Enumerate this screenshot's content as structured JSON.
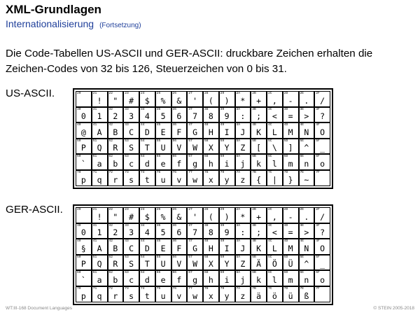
{
  "title": "XML-Grundlagen",
  "subtitle": "Internationalisierung",
  "subtitle_note": "(Fortsetzung)",
  "intro": "Die Code-Tabellen US-ASCII und GER-ASCII: druckbare Zeichen erhalten die Zeichen-Codes von 32 bis 126, Steuerzeichen von 0 bis 31.",
  "us_label": "US-ASCII.",
  "ger_label": "GER-ASCII.",
  "us_rows": [
    [
      " ",
      "!",
      "\"",
      "#",
      "$",
      "%",
      "&",
      "'",
      "(",
      ")",
      "*",
      "+",
      ",",
      "-",
      ".",
      "/"
    ],
    [
      "0",
      "1",
      "2",
      "3",
      "4",
      "5",
      "6",
      "7",
      "8",
      "9",
      ":",
      ";",
      "<",
      "=",
      ">",
      "?"
    ],
    [
      "@",
      "A",
      "B",
      "C",
      "D",
      "E",
      "F",
      "G",
      "H",
      "I",
      "J",
      "K",
      "L",
      "M",
      "N",
      "O"
    ],
    [
      "P",
      "Q",
      "R",
      "S",
      "T",
      "U",
      "V",
      "W",
      "X",
      "Y",
      "Z",
      "[",
      "\\",
      "]",
      "^",
      "_"
    ],
    [
      "`",
      "a",
      "b",
      "c",
      "d",
      "e",
      "f",
      "g",
      "h",
      "i",
      "j",
      "k",
      "l",
      "m",
      "n",
      "o"
    ],
    [
      "p",
      "q",
      "r",
      "s",
      "t",
      "u",
      "v",
      "w",
      "x",
      "y",
      "z",
      "{",
      "|",
      "}",
      "~",
      ""
    ]
  ],
  "ger_rows": [
    [
      " ",
      "!",
      "\"",
      "#",
      "$",
      "%",
      "&",
      "'",
      "(",
      ")",
      "*",
      "+",
      ",",
      "-",
      ".",
      "/"
    ],
    [
      "0",
      "1",
      "2",
      "3",
      "4",
      "5",
      "6",
      "7",
      "8",
      "9",
      ":",
      ";",
      "<",
      "=",
      ">",
      "?"
    ],
    [
      "§",
      "A",
      "B",
      "C",
      "D",
      "E",
      "F",
      "G",
      "H",
      "I",
      "J",
      "K",
      "L",
      "M",
      "N",
      "O"
    ],
    [
      "P",
      "Q",
      "R",
      "S",
      "T",
      "U",
      "V",
      "W",
      "X",
      "Y",
      "Z",
      "Ä",
      "Ö",
      "Ü",
      "^",
      "_"
    ],
    [
      "`",
      "a",
      "b",
      "c",
      "d",
      "e",
      "f",
      "g",
      "h",
      "i",
      "j",
      "k",
      "l",
      "m",
      "n",
      "o"
    ],
    [
      "p",
      "q",
      "r",
      "s",
      "t",
      "u",
      "v",
      "w",
      "x",
      "y",
      "z",
      "ä",
      "ö",
      "ü",
      "ß",
      ""
    ]
  ],
  "row_codes": [
    "2",
    "3",
    "4",
    "5",
    "6",
    "7"
  ],
  "col_codes": [
    "0",
    "1",
    "2",
    "3",
    "4",
    "5",
    "6",
    "7",
    "8",
    "9",
    "A",
    "B",
    "C",
    "D",
    "E",
    "F"
  ],
  "footer_left": "WT:III-168    Document Languages",
  "footer_right": "© STEIN 2005-2018"
}
